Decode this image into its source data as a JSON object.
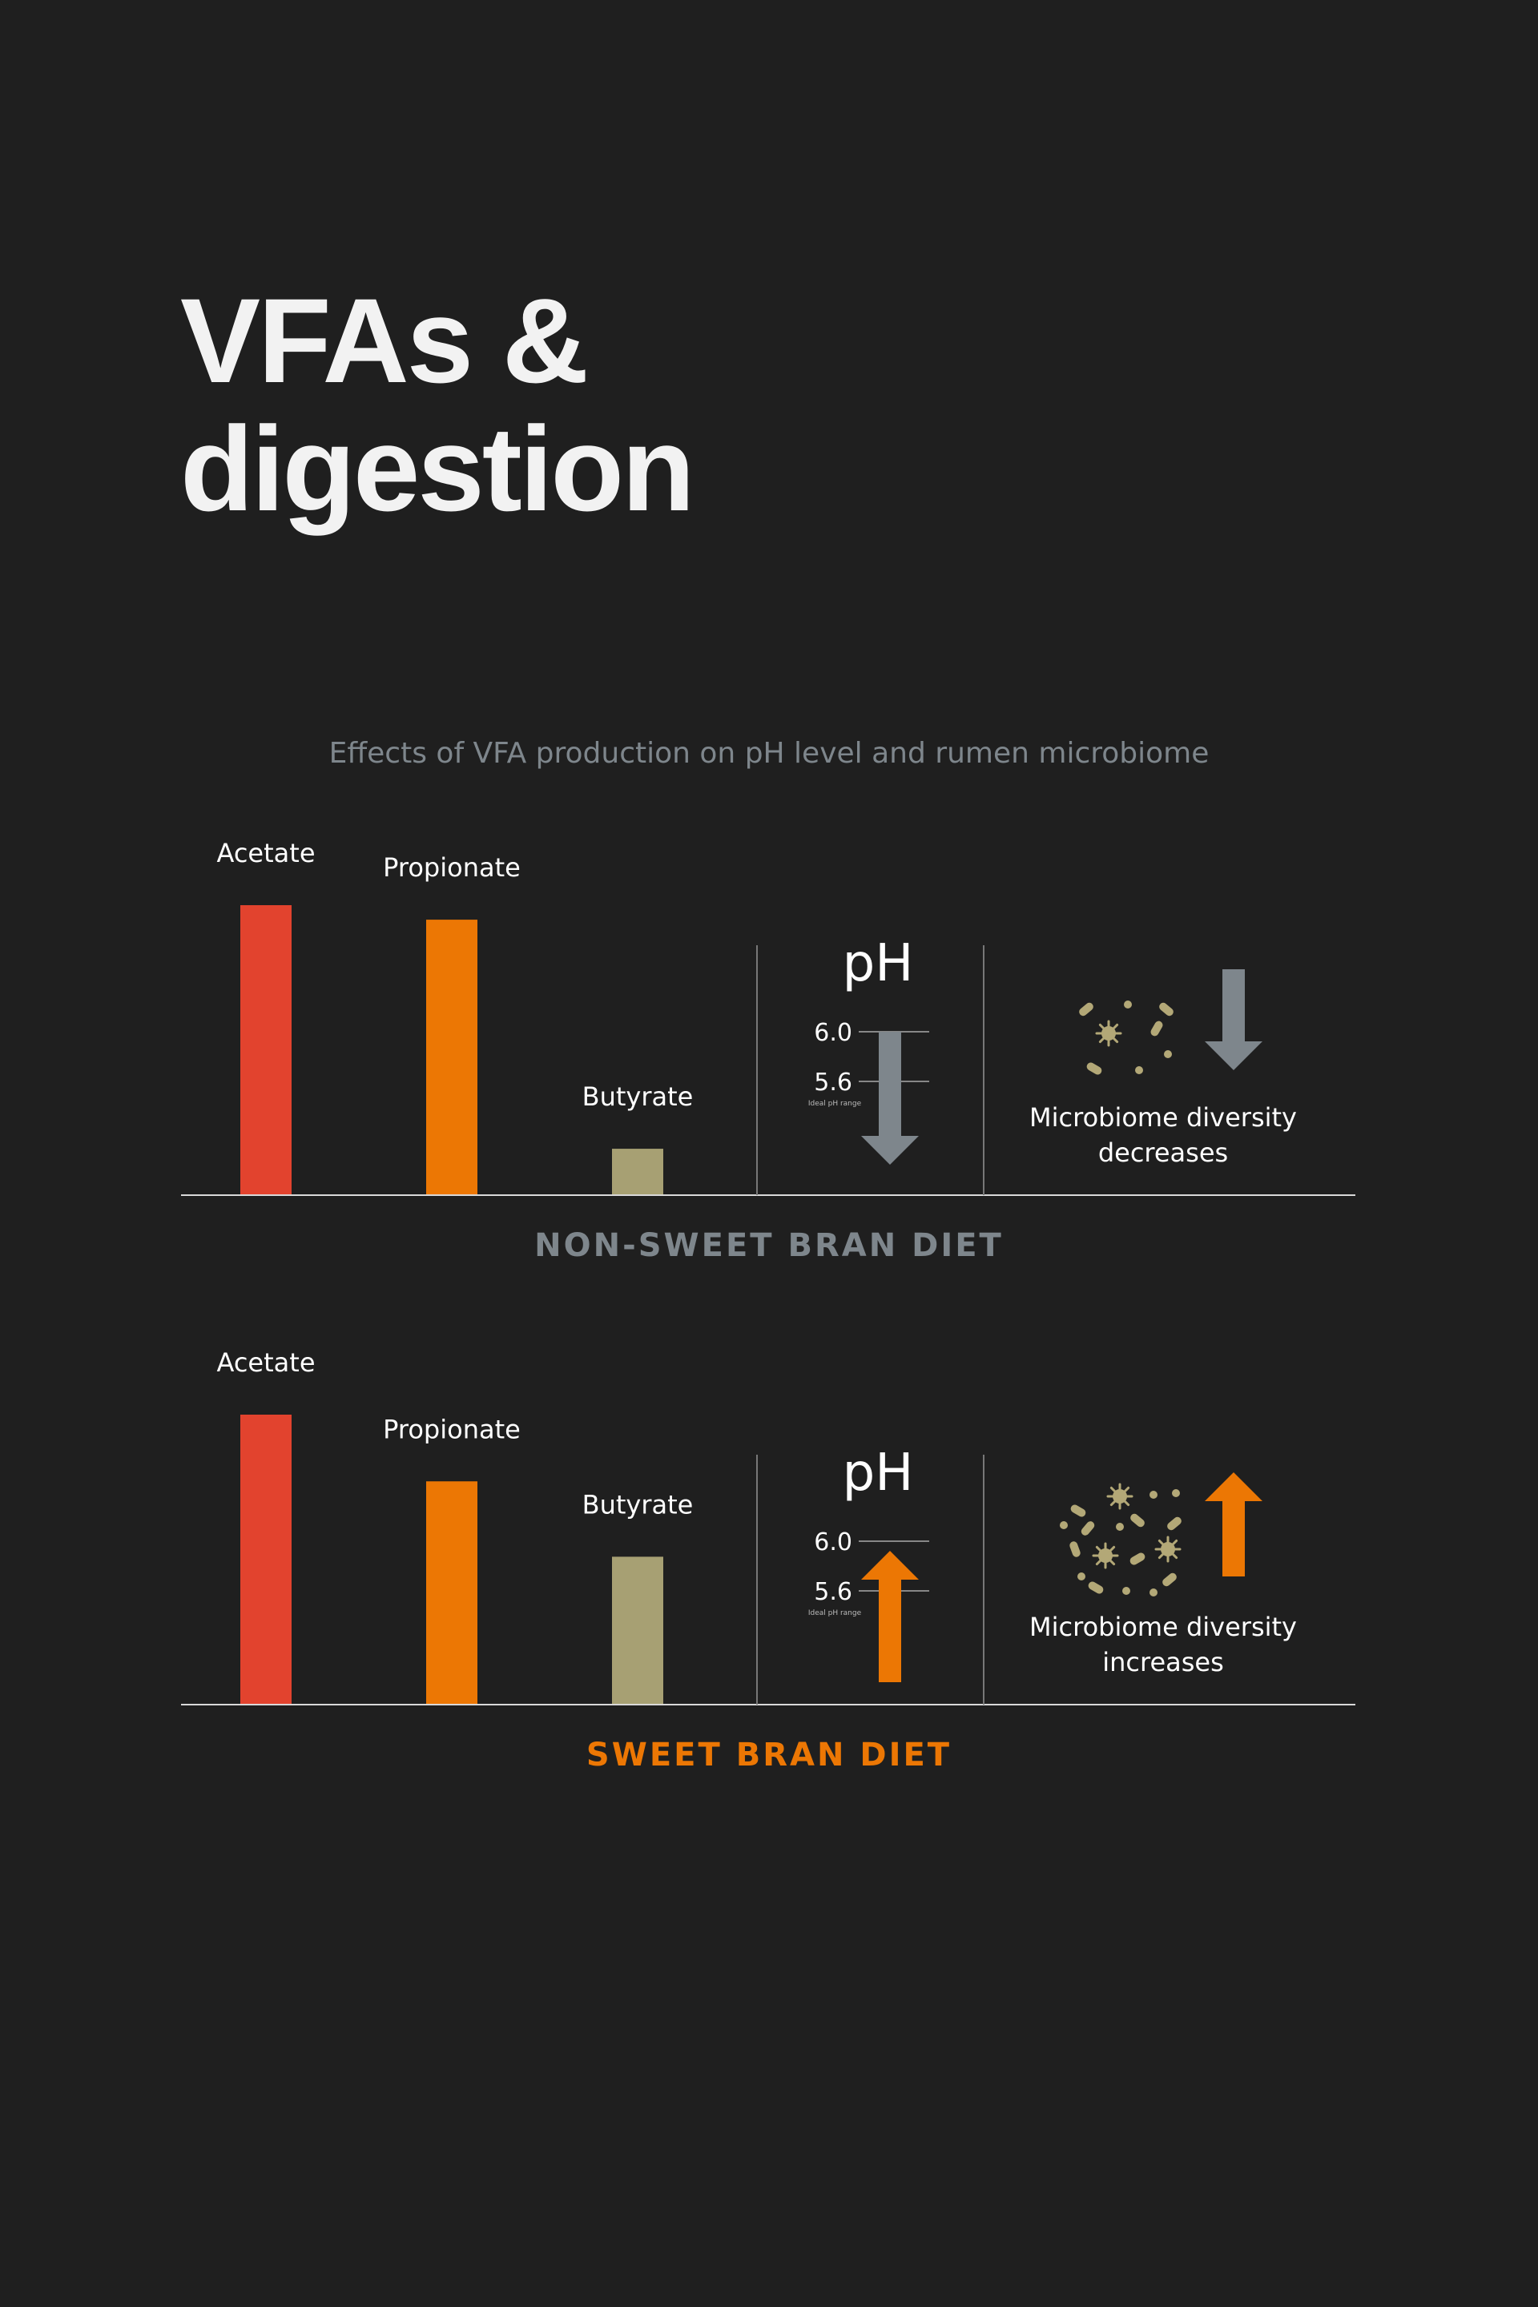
{
  "title_line1": "VFAs &",
  "title_line2": "digestion",
  "subtitle": "Effects of VFA production on pH level and rumen microbiome",
  "colors": {
    "background": "#1f1f1f",
    "acetate": "#e2432e",
    "propionate": "#ec7704",
    "butyrate": "#a7a073",
    "gray_arrow": "#7e868c",
    "orange_arrow": "#ec7704",
    "microbe": "#b3a877"
  },
  "ph_label": "pH",
  "ph_ticks": [
    "6.0",
    "5.6"
  ],
  "ph_caption": "Ideal pH range",
  "chart_data": [
    {
      "type": "bar",
      "title": "NON-SWEET BRAN DIET",
      "title_color": "#7e868c",
      "categories": [
        "Acetate",
        "Propionate",
        "Butyrate"
      ],
      "values": [
        100,
        95,
        16
      ],
      "ylim": [
        0,
        100
      ],
      "ph_direction": "down",
      "microbiome_text": [
        "Microbiome diversity",
        "decreases"
      ],
      "microbiome_direction": "down"
    },
    {
      "type": "bar",
      "title": "SWEET BRAN DIET",
      "title_color": "#ec7704",
      "categories": [
        "Acetate",
        "Propionate",
        "Butyrate"
      ],
      "values": [
        100,
        77,
        51
      ],
      "ylim": [
        0,
        100
      ],
      "ph_direction": "up",
      "microbiome_text": [
        "Microbiome diversity",
        "increases"
      ],
      "microbiome_direction": "up"
    }
  ]
}
